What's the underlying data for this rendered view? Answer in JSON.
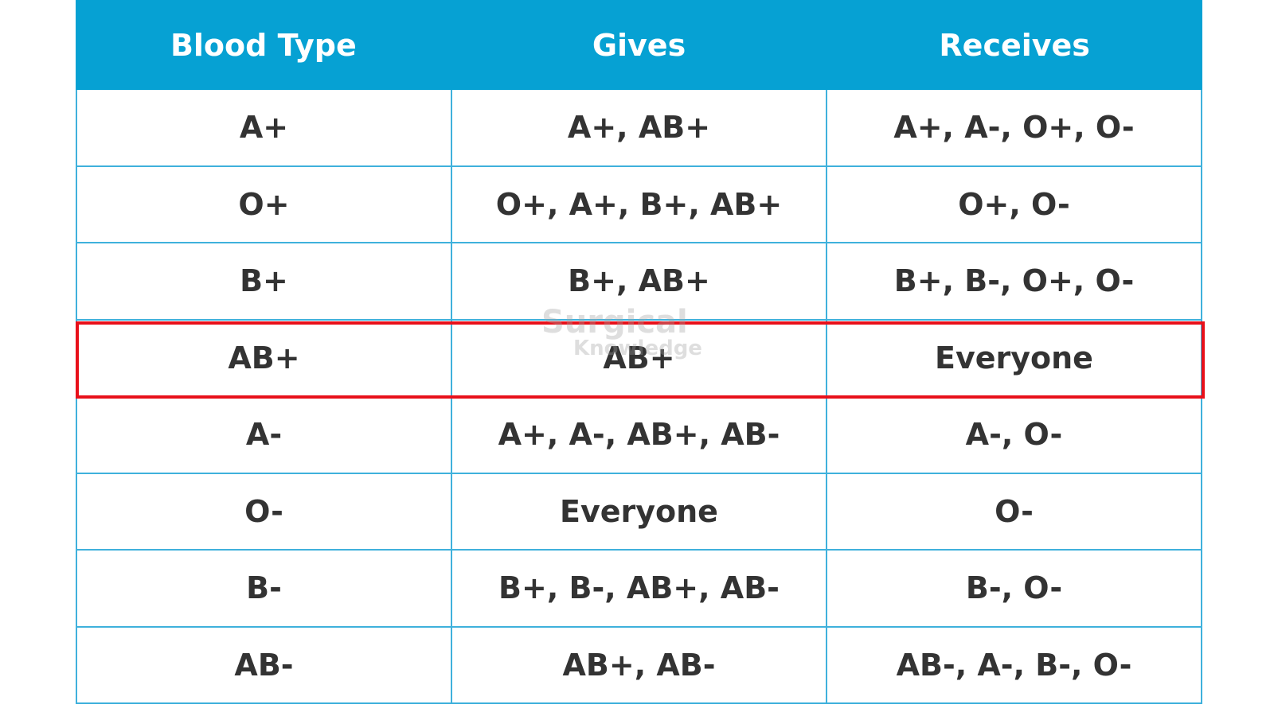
{
  "table": {
    "header": [
      "Blood Type",
      "Gives",
      "Receives"
    ],
    "rows": [
      [
        "A+",
        "A+, AB+",
        "A+, A-, O+, O-"
      ],
      [
        "O+",
        "O+, A+, B+, AB+",
        "O+, O-"
      ],
      [
        "B+",
        "B+, AB+",
        "B+, B-, O+, O-"
      ],
      [
        "AB+",
        "AB+",
        "Everyone"
      ],
      [
        "A-",
        "A+, A-, AB+, AB-",
        "A-, O-"
      ],
      [
        "O-",
        "Everyone",
        "O-"
      ],
      [
        "B-",
        "B+, B-, AB+, AB-",
        "B-, O-"
      ],
      [
        "AB-",
        "AB+, AB-",
        "AB-, A-, B-, O-"
      ]
    ]
  },
  "watermark": {
    "line1": "Surgical",
    "line2": "Knowledge"
  }
}
